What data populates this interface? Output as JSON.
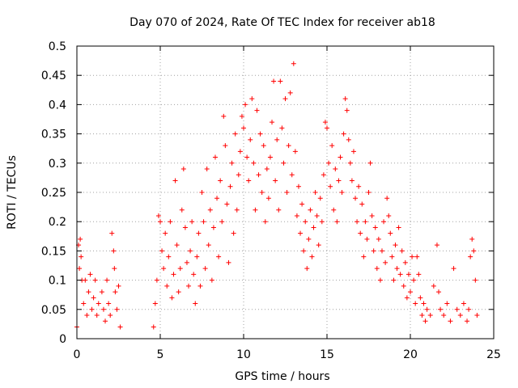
{
  "chart_data": {
    "type": "scatter",
    "title": "Day 070 of 2024, Rate Of TEC Index for receiver ab18",
    "xlabel": "GPS time / hours",
    "ylabel": "ROTI / TECUs",
    "xlim": [
      0,
      25
    ],
    "ylim": [
      0,
      0.5
    ],
    "xticks": [
      "0",
      "5",
      "10",
      "15",
      "20",
      "25"
    ],
    "yticks": [
      "0",
      "0.05",
      "0.1",
      "0.15",
      "0.2",
      "0.25",
      "0.3",
      "0.35",
      "0.4",
      "0.45",
      "0.5"
    ],
    "grid": true,
    "marker": "+",
    "series": [
      {
        "name": "ROTI",
        "color": "#ff0000",
        "points": [
          [
            0.0,
            0.02
          ],
          [
            0.1,
            0.16
          ],
          [
            0.15,
            0.12
          ],
          [
            0.2,
            0.17
          ],
          [
            0.25,
            0.14
          ],
          [
            0.3,
            0.1
          ],
          [
            0.4,
            0.06
          ],
          [
            0.5,
            0.1
          ],
          [
            0.6,
            0.04
          ],
          [
            0.7,
            0.08
          ],
          [
            0.8,
            0.11
          ],
          [
            0.9,
            0.05
          ],
          [
            1.0,
            0.07
          ],
          [
            1.1,
            0.1
          ],
          [
            1.2,
            0.04
          ],
          [
            1.3,
            0.06
          ],
          [
            1.5,
            0.08
          ],
          [
            1.6,
            0.05
          ],
          [
            1.7,
            0.03
          ],
          [
            1.8,
            0.1
          ],
          [
            1.9,
            0.06
          ],
          [
            2.0,
            0.04
          ],
          [
            2.1,
            0.18
          ],
          [
            2.2,
            0.15
          ],
          [
            2.25,
            0.12
          ],
          [
            2.3,
            0.08
          ],
          [
            2.4,
            0.05
          ],
          [
            2.5,
            0.09
          ],
          [
            2.6,
            0.02
          ],
          [
            4.6,
            0.02
          ],
          [
            4.7,
            0.06
          ],
          [
            4.8,
            0.1
          ],
          [
            4.9,
            0.21
          ],
          [
            5.0,
            0.2
          ],
          [
            5.1,
            0.15
          ],
          [
            5.2,
            0.12
          ],
          [
            5.3,
            0.18
          ],
          [
            5.4,
            0.09
          ],
          [
            5.5,
            0.14
          ],
          [
            5.6,
            0.2
          ],
          [
            5.7,
            0.07
          ],
          [
            5.8,
            0.11
          ],
          [
            5.9,
            0.27
          ],
          [
            6.0,
            0.16
          ],
          [
            6.1,
            0.08
          ],
          [
            6.2,
            0.12
          ],
          [
            6.3,
            0.22
          ],
          [
            6.4,
            0.29
          ],
          [
            6.5,
            0.19
          ],
          [
            6.6,
            0.13
          ],
          [
            6.7,
            0.09
          ],
          [
            6.8,
            0.15
          ],
          [
            6.9,
            0.2
          ],
          [
            7.0,
            0.11
          ],
          [
            7.1,
            0.06
          ],
          [
            7.2,
            0.14
          ],
          [
            7.3,
            0.18
          ],
          [
            7.4,
            0.09
          ],
          [
            7.5,
            0.25
          ],
          [
            7.6,
            0.2
          ],
          [
            7.7,
            0.12
          ],
          [
            7.8,
            0.29
          ],
          [
            7.9,
            0.16
          ],
          [
            8.0,
            0.22
          ],
          [
            8.1,
            0.1
          ],
          [
            8.2,
            0.19
          ],
          [
            8.3,
            0.31
          ],
          [
            8.4,
            0.24
          ],
          [
            8.5,
            0.14
          ],
          [
            8.6,
            0.27
          ],
          [
            8.7,
            0.2
          ],
          [
            8.8,
            0.38
          ],
          [
            8.9,
            0.33
          ],
          [
            9.0,
            0.23
          ],
          [
            9.1,
            0.13
          ],
          [
            9.2,
            0.26
          ],
          [
            9.3,
            0.3
          ],
          [
            9.4,
            0.18
          ],
          [
            9.5,
            0.35
          ],
          [
            9.6,
            0.22
          ],
          [
            9.7,
            0.28
          ],
          [
            9.8,
            0.32
          ],
          [
            9.9,
            0.38
          ],
          [
            10.0,
            0.36
          ],
          [
            10.1,
            0.4
          ],
          [
            10.2,
            0.31
          ],
          [
            10.3,
            0.27
          ],
          [
            10.4,
            0.34
          ],
          [
            10.5,
            0.41
          ],
          [
            10.6,
            0.3
          ],
          [
            10.7,
            0.22
          ],
          [
            10.8,
            0.39
          ],
          [
            10.9,
            0.28
          ],
          [
            11.0,
            0.35
          ],
          [
            11.1,
            0.25
          ],
          [
            11.2,
            0.33
          ],
          [
            11.3,
            0.2
          ],
          [
            11.4,
            0.29
          ],
          [
            11.5,
            0.24
          ],
          [
            11.6,
            0.31
          ],
          [
            11.7,
            0.37
          ],
          [
            11.8,
            0.44
          ],
          [
            11.9,
            0.27
          ],
          [
            12.0,
            0.34
          ],
          [
            12.1,
            0.22
          ],
          [
            12.2,
            0.44
          ],
          [
            12.3,
            0.36
          ],
          [
            12.4,
            0.3
          ],
          [
            12.5,
            0.41
          ],
          [
            12.6,
            0.25
          ],
          [
            12.7,
            0.33
          ],
          [
            12.8,
            0.42
          ],
          [
            12.9,
            0.28
          ],
          [
            13.0,
            0.47
          ],
          [
            13.1,
            0.32
          ],
          [
            13.2,
            0.21
          ],
          [
            13.3,
            0.26
          ],
          [
            13.4,
            0.18
          ],
          [
            13.5,
            0.23
          ],
          [
            13.6,
            0.15
          ],
          [
            13.7,
            0.2
          ],
          [
            13.8,
            0.12
          ],
          [
            13.9,
            0.17
          ],
          [
            14.0,
            0.22
          ],
          [
            14.1,
            0.14
          ],
          [
            14.2,
            0.19
          ],
          [
            14.3,
            0.25
          ],
          [
            14.4,
            0.21
          ],
          [
            14.5,
            0.16
          ],
          [
            14.6,
            0.24
          ],
          [
            14.7,
            0.2
          ],
          [
            14.8,
            0.28
          ],
          [
            14.9,
            0.37
          ],
          [
            15.0,
            0.36
          ],
          [
            15.1,
            0.3
          ],
          [
            15.2,
            0.26
          ],
          [
            15.3,
            0.33
          ],
          [
            15.4,
            0.22
          ],
          [
            15.5,
            0.29
          ],
          [
            15.6,
            0.2
          ],
          [
            15.7,
            0.27
          ],
          [
            15.8,
            0.31
          ],
          [
            15.9,
            0.25
          ],
          [
            16.0,
            0.35
          ],
          [
            16.1,
            0.41
          ],
          [
            16.2,
            0.39
          ],
          [
            16.3,
            0.34
          ],
          [
            16.4,
            0.3
          ],
          [
            16.5,
            0.27
          ],
          [
            16.6,
            0.32
          ],
          [
            16.7,
            0.24
          ],
          [
            16.8,
            0.2
          ],
          [
            16.9,
            0.26
          ],
          [
            17.0,
            0.18
          ],
          [
            17.1,
            0.23
          ],
          [
            17.2,
            0.14
          ],
          [
            17.3,
            0.2
          ],
          [
            17.4,
            0.17
          ],
          [
            17.5,
            0.25
          ],
          [
            17.6,
            0.3
          ],
          [
            17.7,
            0.21
          ],
          [
            17.8,
            0.15
          ],
          [
            17.9,
            0.19
          ],
          [
            18.0,
            0.12
          ],
          [
            18.1,
            0.17
          ],
          [
            18.2,
            0.1
          ],
          [
            18.3,
            0.15
          ],
          [
            18.4,
            0.2
          ],
          [
            18.5,
            0.13
          ],
          [
            18.6,
            0.24
          ],
          [
            18.7,
            0.21
          ],
          [
            18.8,
            0.18
          ],
          [
            18.9,
            0.14
          ],
          [
            19.0,
            0.1
          ],
          [
            19.1,
            0.16
          ],
          [
            19.2,
            0.12
          ],
          [
            19.3,
            0.19
          ],
          [
            19.4,
            0.11
          ],
          [
            19.5,
            0.15
          ],
          [
            19.6,
            0.09
          ],
          [
            19.7,
            0.13
          ],
          [
            19.8,
            0.07
          ],
          [
            19.9,
            0.11
          ],
          [
            20.0,
            0.08
          ],
          [
            20.1,
            0.14
          ],
          [
            20.2,
            0.1
          ],
          [
            20.3,
            0.06
          ],
          [
            20.4,
            0.14
          ],
          [
            20.5,
            0.11
          ],
          [
            20.6,
            0.07
          ],
          [
            20.7,
            0.04
          ],
          [
            20.8,
            0.06
          ],
          [
            20.9,
            0.03
          ],
          [
            21.0,
            0.05
          ],
          [
            21.2,
            0.04
          ],
          [
            21.4,
            0.09
          ],
          [
            21.6,
            0.16
          ],
          [
            21.7,
            0.08
          ],
          [
            21.8,
            0.05
          ],
          [
            22.0,
            0.04
          ],
          [
            22.2,
            0.06
          ],
          [
            22.4,
            0.03
          ],
          [
            22.6,
            0.12
          ],
          [
            22.8,
            0.05
          ],
          [
            23.0,
            0.04
          ],
          [
            23.2,
            0.06
          ],
          [
            23.4,
            0.03
          ],
          [
            23.5,
            0.05
          ],
          [
            23.6,
            0.14
          ],
          [
            23.7,
            0.17
          ],
          [
            23.8,
            0.15
          ],
          [
            23.9,
            0.1
          ],
          [
            24.0,
            0.04
          ]
        ]
      }
    ]
  }
}
